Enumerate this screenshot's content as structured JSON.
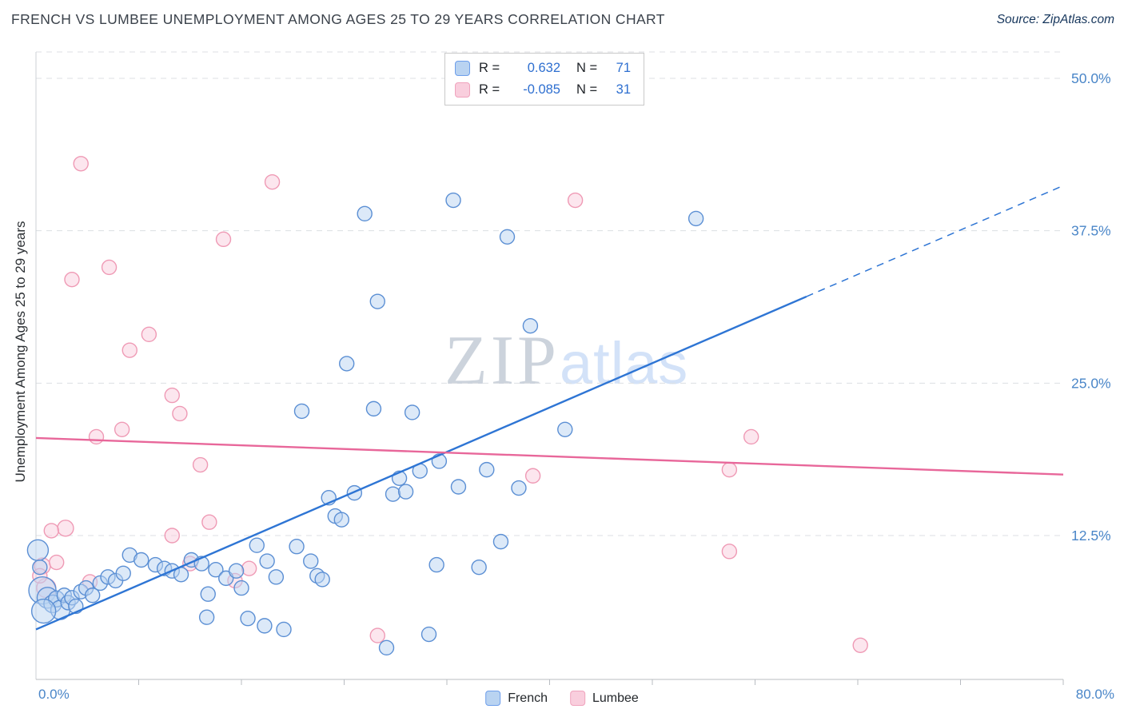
{
  "header": {
    "source": "Source: ZipAtlas.com"
  },
  "watermark": {
    "zip": "ZIP",
    "atlas": "atlas"
  },
  "legend": {
    "rows": [
      {
        "series": "French",
        "r_label": "R =",
        "r_value": "0.632",
        "n_label": "N =",
        "n_value": "71"
      },
      {
        "series": "Lumbee",
        "r_label": "R =",
        "r_value": "-0.085",
        "n_label": "N =",
        "n_value": "31"
      }
    ]
  },
  "bottom_legend": {
    "items": [
      {
        "label": "French"
      },
      {
        "label": "Lumbee"
      }
    ]
  },
  "colors": {
    "french_fill": "#b9d3f1",
    "french_stroke": "#5b8fd4",
    "lumbee_fill": "#f9cedd",
    "lumbee_stroke": "#ef9ab5",
    "french_line": "#2e75d4",
    "lumbee_line": "#e8679a",
    "axis_label_blue": "#4a86c8",
    "grid": "#dcdfe3",
    "axis": "#b8bcc2"
  },
  "chart_data": {
    "type": "scatter",
    "title": "FRENCH VS LUMBEE UNEMPLOYMENT AMONG AGES 25 TO 29 YEARS CORRELATION CHART",
    "xlabel": "",
    "ylabel": "Unemployment Among Ages 25 to 29 years",
    "xlim": [
      0,
      80
    ],
    "ylim": [
      0,
      52.2
    ],
    "grid": "dashed-horizontal",
    "legend_position": "top-center",
    "x_tick_labels": [
      {
        "value": 0,
        "label": "0.0%"
      },
      {
        "value": 80,
        "label": "80.0%"
      }
    ],
    "y_tick_labels": [
      {
        "value": 50,
        "label": "50.0%"
      },
      {
        "value": 37.5,
        "label": "37.5%"
      },
      {
        "value": 25,
        "label": "25.0%"
      },
      {
        "value": 12.5,
        "label": "12.5%"
      }
    ],
    "gridline_values": [
      12.5,
      25,
      37.5,
      50
    ],
    "x_minor_ticks": [
      8,
      16,
      24,
      32,
      40,
      48,
      56,
      64,
      72,
      80
    ],
    "series": [
      {
        "name": "French",
        "R": 0.632,
        "N": 71,
        "color": "#5b8fd4",
        "fill": "#b9d3f1",
        "points": [
          [
            0.15,
            11.3,
            13
          ],
          [
            0.3,
            9.9,
            9
          ],
          [
            0.5,
            8.0,
            17
          ],
          [
            0.9,
            7.4,
            13
          ],
          [
            1.3,
            6.9,
            11
          ],
          [
            1.6,
            7.3,
            10
          ],
          [
            1.9,
            6.4,
            12
          ],
          [
            2.2,
            7.6,
            9
          ],
          [
            2.5,
            7.0,
            9
          ],
          [
            2.8,
            7.4,
            9
          ],
          [
            3.1,
            6.7,
            9
          ],
          [
            3.5,
            7.9,
            9
          ],
          [
            3.9,
            8.2,
            9
          ],
          [
            4.4,
            7.6,
            9
          ],
          [
            5.0,
            8.6,
            9
          ],
          [
            5.6,
            9.1,
            9
          ],
          [
            6.2,
            8.8,
            9
          ],
          [
            6.8,
            9.4,
            9
          ],
          [
            7.3,
            10.9,
            9
          ],
          [
            8.2,
            10.5,
            9
          ],
          [
            9.3,
            10.1,
            9
          ],
          [
            10.0,
            9.8,
            9
          ],
          [
            10.6,
            9.6,
            9
          ],
          [
            11.3,
            9.3,
            9
          ],
          [
            12.1,
            10.5,
            9
          ],
          [
            12.9,
            10.2,
            9
          ],
          [
            13.4,
            7.7,
            9
          ],
          [
            13.3,
            5.8,
            9
          ],
          [
            14.0,
            9.7,
            9
          ],
          [
            14.8,
            9.0,
            9
          ],
          [
            15.6,
            9.6,
            9
          ],
          [
            16.0,
            8.2,
            9
          ],
          [
            16.5,
            5.7,
            9
          ],
          [
            17.2,
            11.7,
            9
          ],
          [
            17.8,
            5.1,
            9
          ],
          [
            18.0,
            10.4,
            9
          ],
          [
            18.7,
            9.1,
            9
          ],
          [
            19.3,
            4.8,
            9
          ],
          [
            20.3,
            11.6,
            9
          ],
          [
            20.7,
            22.7,
            9
          ],
          [
            21.4,
            10.4,
            9
          ],
          [
            21.9,
            9.2,
            9
          ],
          [
            22.3,
            8.9,
            9
          ],
          [
            22.8,
            15.6,
            9
          ],
          [
            23.3,
            14.1,
            9
          ],
          [
            23.8,
            13.8,
            9
          ],
          [
            24.2,
            26.6,
            9
          ],
          [
            24.8,
            16.0,
            9
          ],
          [
            25.6,
            38.9,
            9
          ],
          [
            26.3,
            22.9,
            9
          ],
          [
            26.6,
            31.7,
            9
          ],
          [
            27.3,
            3.3,
            9
          ],
          [
            27.8,
            15.9,
            9
          ],
          [
            28.3,
            17.2,
            9
          ],
          [
            28.8,
            16.1,
            9
          ],
          [
            29.3,
            22.6,
            9
          ],
          [
            29.9,
            17.8,
            9
          ],
          [
            30.6,
            4.4,
            9
          ],
          [
            31.2,
            10.1,
            9
          ],
          [
            31.4,
            18.6,
            9
          ],
          [
            32.5,
            40.0,
            9
          ],
          [
            32.9,
            16.5,
            9
          ],
          [
            34.5,
            9.9,
            9
          ],
          [
            35.1,
            17.9,
            9
          ],
          [
            36.2,
            12.0,
            9
          ],
          [
            36.7,
            37.0,
            9
          ],
          [
            37.6,
            16.4,
            9
          ],
          [
            38.5,
            29.7,
            9
          ],
          [
            41.2,
            21.2,
            9
          ],
          [
            51.4,
            38.5,
            9
          ],
          [
            0.6,
            6.3,
            15
          ]
        ]
      },
      {
        "name": "Lumbee",
        "R": -0.085,
        "N": 31,
        "color": "#ef9ab5",
        "fill": "#f9cedd",
        "points": [
          [
            3.5,
            43.0,
            9
          ],
          [
            18.4,
            41.5,
            9
          ],
          [
            42.0,
            40.0,
            9
          ],
          [
            14.6,
            36.8,
            9
          ],
          [
            5.7,
            34.5,
            9
          ],
          [
            2.8,
            33.5,
            9
          ],
          [
            8.8,
            29.0,
            9
          ],
          [
            7.3,
            27.7,
            9
          ],
          [
            10.6,
            24.0,
            9
          ],
          [
            11.2,
            22.5,
            9
          ],
          [
            6.7,
            21.2,
            9
          ],
          [
            4.7,
            20.6,
            9
          ],
          [
            12.8,
            18.3,
            9
          ],
          [
            55.7,
            20.6,
            9
          ],
          [
            54.0,
            17.9,
            9
          ],
          [
            38.7,
            17.4,
            9
          ],
          [
            13.5,
            13.6,
            9
          ],
          [
            2.3,
            13.1,
            10
          ],
          [
            1.2,
            12.9,
            9
          ],
          [
            0.5,
            10.0,
            10
          ],
          [
            1.6,
            10.3,
            9
          ],
          [
            12.0,
            10.2,
            9
          ],
          [
            15.5,
            8.8,
            9
          ],
          [
            16.6,
            9.8,
            9
          ],
          [
            54.0,
            11.2,
            9
          ],
          [
            26.6,
            4.3,
            9
          ],
          [
            64.2,
            3.5,
            9
          ],
          [
            0.8,
            8.2,
            12
          ],
          [
            4.2,
            8.7,
            9
          ],
          [
            0.3,
            9.2,
            9
          ],
          [
            10.6,
            12.5,
            9
          ]
        ]
      }
    ],
    "trend_lines": [
      {
        "series": "French",
        "color": "#2e75d4",
        "x_start": 0,
        "y_start": 4.8,
        "x_end": 80,
        "y_end": 41.2,
        "solid_until_x": 60
      },
      {
        "series": "Lumbee",
        "color": "#e8679a",
        "x_start": 0,
        "y_start": 20.5,
        "x_end": 80,
        "y_end": 17.5
      }
    ]
  }
}
